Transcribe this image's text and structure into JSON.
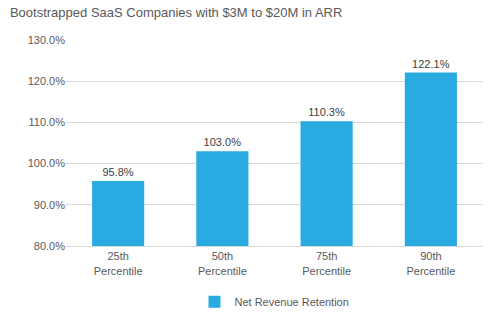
{
  "chart_data": {
    "type": "bar",
    "title": "Bootstrapped SaaS Companies with $3M to $20M in ARR",
    "categories": [
      "25th Percentile",
      "50th Percentile",
      "75th Percentile",
      "90th Percentile"
    ],
    "series": [
      {
        "name": "Net Revenue Retention",
        "color": "#29abe2",
        "values": [
          95.8,
          103.0,
          110.3,
          122.1
        ],
        "value_labels": [
          "95.8%",
          "103.0%",
          "110.3%",
          "122.1%"
        ]
      }
    ],
    "ylim": [
      80,
      130
    ],
    "yticks": [
      {
        "value": 80,
        "label": "80.0%"
      },
      {
        "value": 90,
        "label": "90.0%"
      },
      {
        "value": 100,
        "label": "100.0%"
      },
      {
        "value": 110,
        "label": "110.0%"
      },
      {
        "value": 120,
        "label": "120.0%"
      },
      {
        "value": 130,
        "label": "130.0%"
      }
    ],
    "grid": true,
    "legend": "bottom",
    "data_labels": true
  }
}
